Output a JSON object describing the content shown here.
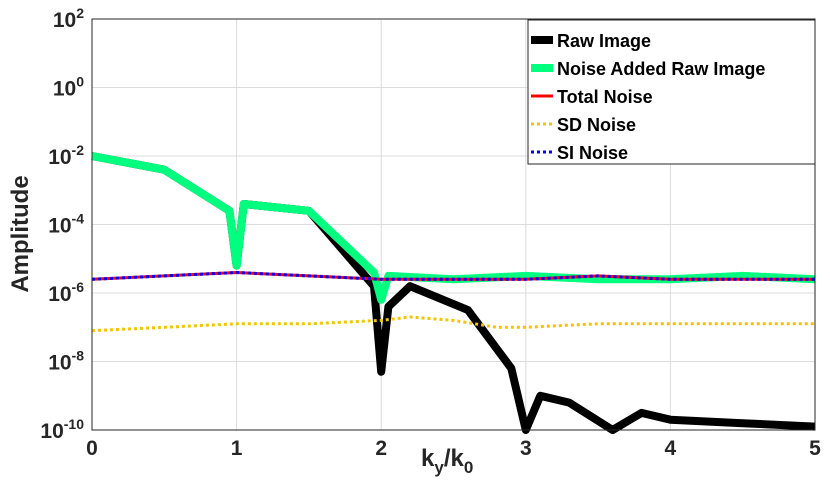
{
  "chart_data": {
    "type": "line",
    "yscale": "log",
    "xlim": [
      0,
      5
    ],
    "ylim_exponent": [
      -10,
      2
    ],
    "xticks": [
      0,
      1,
      2,
      3,
      4,
      5
    ],
    "yticks": [
      {
        "base": "10",
        "exp": "2"
      },
      {
        "base": "10",
        "exp": "0"
      },
      {
        "base": "10",
        "exp": "-2"
      },
      {
        "base": "10",
        "exp": "-4"
      },
      {
        "base": "10",
        "exp": "-6"
      },
      {
        "base": "10",
        "exp": "-8"
      },
      {
        "base": "10",
        "exp": "-10"
      }
    ],
    "ylabel": "Amplitude",
    "xlabel": {
      "k": "k",
      "sub_y": "y",
      "slash": "/",
      "k2": "k",
      "sub_0": "0"
    },
    "grid": true,
    "legend_position": "top-right",
    "series": [
      {
        "name": "Raw Image",
        "color": "#000000",
        "style": "solid",
        "x": [
          0,
          0.5,
          0.95,
          1.0,
          1.05,
          1.5,
          1.95,
          2.0,
          2.05,
          2.2,
          2.6,
          2.9,
          3.0,
          3.1,
          3.3,
          3.6,
          3.8,
          4.0,
          4.5,
          5.0
        ],
        "log10y": [
          -2,
          -2.4,
          -3.6,
          -5.2,
          -3.4,
          -3.6,
          -5.8,
          -8.3,
          -6.4,
          -5.8,
          -6.5,
          -8.2,
          -10,
          -9,
          -9.2,
          -10,
          -9.5,
          -9.7,
          -9.8,
          -9.9
        ]
      },
      {
        "name": "Noise Added Raw Image",
        "color": "#00ff7f",
        "style": "solid",
        "x": [
          0,
          0.5,
          0.95,
          1.0,
          1.05,
          1.5,
          1.95,
          2.0,
          2.05,
          2.5,
          3.0,
          3.5,
          4.0,
          4.5,
          5.0
        ],
        "log10y": [
          -2,
          -2.4,
          -3.6,
          -5.2,
          -3.4,
          -3.6,
          -5.4,
          -6.2,
          -5.5,
          -5.6,
          -5.5,
          -5.6,
          -5.6,
          -5.5,
          -5.6
        ]
      },
      {
        "name": "Total Noise",
        "color": "#ff0000",
        "style": "solid",
        "x": [
          0,
          0.5,
          1.0,
          1.5,
          2.0,
          2.5,
          3.0,
          3.5,
          4.0,
          4.5,
          5.0
        ],
        "log10y": [
          -5.6,
          -5.5,
          -5.4,
          -5.5,
          -5.6,
          -5.6,
          -5.6,
          -5.5,
          -5.6,
          -5.6,
          -5.6
        ]
      },
      {
        "name": "SD Noise",
        "color": "#f2c500",
        "style": "dotted",
        "x": [
          0,
          0.5,
          1.0,
          1.5,
          2.0,
          2.2,
          2.5,
          2.8,
          3.0,
          3.5,
          4.0,
          4.5,
          5.0
        ],
        "log10y": [
          -7.1,
          -7.0,
          -6.9,
          -6.9,
          -6.8,
          -6.7,
          -6.8,
          -7.0,
          -7.0,
          -6.9,
          -6.9,
          -6.9,
          -6.9
        ]
      },
      {
        "name": "SI Noise",
        "color": "#0000ff",
        "style": "dotted",
        "x": [
          0,
          0.5,
          1.0,
          1.5,
          2.0,
          2.5,
          3.0,
          3.5,
          4.0,
          4.5,
          5.0
        ],
        "log10y": [
          -5.6,
          -5.5,
          -5.4,
          -5.5,
          -5.6,
          -5.6,
          -5.6,
          -5.5,
          -5.6,
          -5.6,
          -5.6
        ]
      }
    ]
  }
}
